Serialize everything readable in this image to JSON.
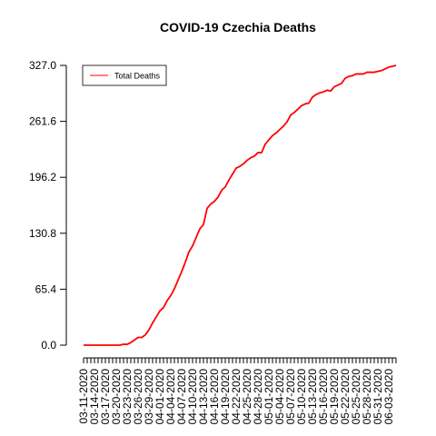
{
  "chart_data": {
    "type": "line",
    "title": "COVID-19 Czechia Deaths",
    "xlabel": "",
    "ylabel": "",
    "ylim": [
      0,
      327
    ],
    "y_ticks": [
      0,
      65.4,
      130.8,
      196.2,
      261.6,
      327
    ],
    "y_tick_labels": [
      "0.0",
      "65.4",
      "130.8",
      "196.2",
      "261.6",
      "327.0"
    ],
    "x_tick_labels": [
      "03-11-2020",
      "03-14-2020",
      "03-17-2020",
      "03-20-2020",
      "03-23-2020",
      "03-26-2020",
      "03-29-2020",
      "04-01-2020",
      "04-04-2020",
      "04-07-2020",
      "04-10-2020",
      "04-13-2020",
      "04-16-2020",
      "04-19-2020",
      "04-22-2020",
      "04-25-2020",
      "04-28-2020",
      "05-01-2020",
      "05-04-2020",
      "05-07-2020",
      "05-10-2020",
      "05-13-2020",
      "05-16-2020",
      "05-19-2020",
      "05-22-2020",
      "05-25-2020",
      "05-28-2020",
      "05-31-2020",
      "06-03-2020"
    ],
    "legend": {
      "position": "top-left",
      "entries": [
        "Total Deaths"
      ]
    },
    "grid": false,
    "series": [
      {
        "name": "Total Deaths",
        "color": "#ff0000",
        "values": [
          0,
          0,
          0,
          0,
          0,
          0,
          0,
          0,
          0,
          0,
          0,
          1,
          1,
          3,
          6,
          9,
          9,
          12,
          18,
          26,
          33,
          40,
          44,
          52,
          58,
          66,
          76,
          86,
          97,
          109,
          116,
          126,
          136,
          141,
          160,
          165,
          168,
          173,
          181,
          185,
          193,
          200,
          207,
          209,
          212,
          216,
          219,
          221,
          225,
          225,
          235,
          240,
          245,
          248,
          252,
          256,
          261,
          269,
          272,
          276,
          280,
          282,
          283,
          290,
          293,
          295,
          296,
          298,
          297,
          302,
          304,
          306,
          312,
          314,
          315,
          317,
          317,
          317,
          319,
          319,
          319,
          320,
          321,
          323,
          325,
          326,
          327
        ]
      }
    ]
  }
}
